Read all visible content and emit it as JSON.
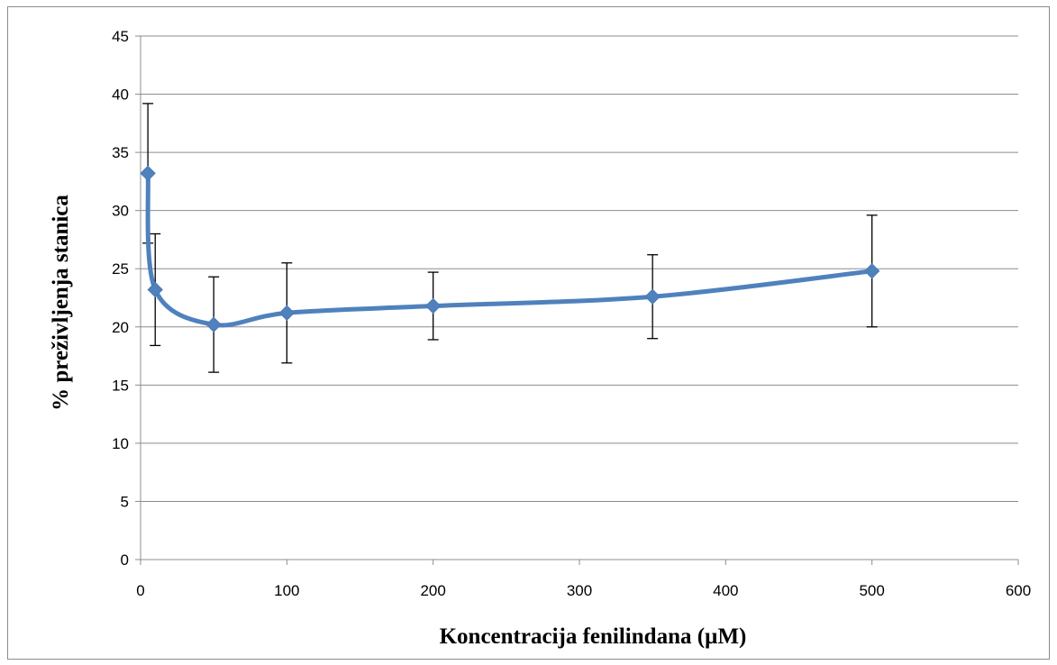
{
  "chart_data": {
    "type": "scatter",
    "title": "",
    "xlabel": "Koncentracija fenilindana (µM)",
    "ylabel": "% preživljenja stanica",
    "xlim": [
      0,
      600
    ],
    "ylim": [
      0,
      45
    ],
    "x_ticks": [
      0,
      100,
      200,
      300,
      400,
      500,
      600
    ],
    "y_ticks": [
      0,
      5,
      10,
      15,
      20,
      25,
      30,
      35,
      40,
      45
    ],
    "grid": "horizontal",
    "legend": "none",
    "series": [
      {
        "x": [
          5,
          10,
          50,
          100,
          200,
          350,
          500
        ],
        "y": [
          33.2,
          23.2,
          20.2,
          21.2,
          21.8,
          22.6,
          24.8
        ],
        "error": [
          6.0,
          4.8,
          4.1,
          4.3,
          2.9,
          3.6,
          4.8
        ],
        "color": "#4f81bd",
        "smoothed_line": true,
        "marker": "diamond"
      }
    ]
  }
}
